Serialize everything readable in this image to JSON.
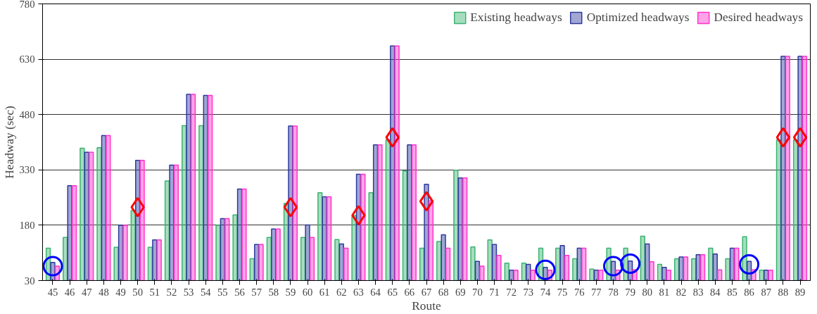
{
  "chart_data": {
    "type": "bar",
    "xlabel": "Route",
    "ylabel": "Headway (sec)",
    "categories": [
      "45",
      "46",
      "47",
      "48",
      "49",
      "50",
      "51",
      "52",
      "53",
      "54",
      "55",
      "56",
      "57",
      "58",
      "59",
      "60",
      "61",
      "62",
      "63",
      "64",
      "65",
      "66",
      "67",
      "68",
      "69",
      "70",
      "71",
      "72",
      "73",
      "74",
      "75",
      "76",
      "77",
      "78",
      "79",
      "80",
      "81",
      "82",
      "83",
      "84",
      "85",
      "86",
      "87",
      "88",
      "89"
    ],
    "ylim": [
      30,
      780
    ],
    "yticks": [
      30,
      180,
      330,
      480,
      630,
      780
    ],
    "grid": "y",
    "legend": "top right",
    "series": [
      {
        "name": "Existing headways",
        "color": "#3cb371",
        "values": [
          118,
          147,
          389,
          390,
          120,
          220,
          120,
          300,
          450,
          450,
          180,
          208,
          89,
          147,
          239,
          147,
          268,
          141,
          206,
          268,
          411,
          327,
          118,
          136,
          329,
          121,
          140,
          77,
          77,
          118,
          118,
          89,
          61,
          118,
          118,
          150,
          74,
          89,
          89,
          118,
          89,
          149,
          58,
          411,
          411
        ]
      },
      {
        "name": "Optimized headways",
        "color": "#2e3a9e",
        "values": [
          79,
          287,
          378,
          423,
          180,
          356,
          140,
          343,
          535,
          532,
          198,
          278,
          128,
          170,
          449,
          181,
          257,
          129,
          318,
          398,
          666,
          398,
          291,
          154,
          308,
          82,
          128,
          58,
          74,
          66,
          125,
          118,
          58,
          82,
          83,
          129,
          66,
          94,
          100,
          102,
          118,
          82,
          58,
          638,
          638
        ]
      },
      {
        "name": "Desired headways",
        "color": "#ff33cc",
        "values": [
          69,
          287,
          378,
          423,
          180,
          356,
          140,
          343,
          535,
          532,
          198,
          278,
          128,
          170,
          449,
          147,
          257,
          118,
          318,
          398,
          666,
          398,
          246,
          118,
          308,
          69,
          98,
          58,
          58,
          58,
          98,
          118,
          58,
          58,
          59,
          81,
          58,
          94,
          100,
          59,
          118,
          59,
          58,
          638,
          638
        ]
      },
      {
        "type": "scatter",
        "marker": "diamond",
        "color": "#ff0000",
        "x": [
          "50",
          "59",
          "63",
          "65",
          "67",
          "88",
          "89"
        ],
        "values": [
          229,
          229,
          207,
          418,
          245,
          418,
          418
        ]
      },
      {
        "type": "scatter",
        "marker": "circle",
        "color": "#0000ff",
        "x": [
          "45",
          "74",
          "78",
          "79",
          "86"
        ],
        "values": [
          69,
          59,
          69,
          76,
          74
        ]
      }
    ]
  }
}
